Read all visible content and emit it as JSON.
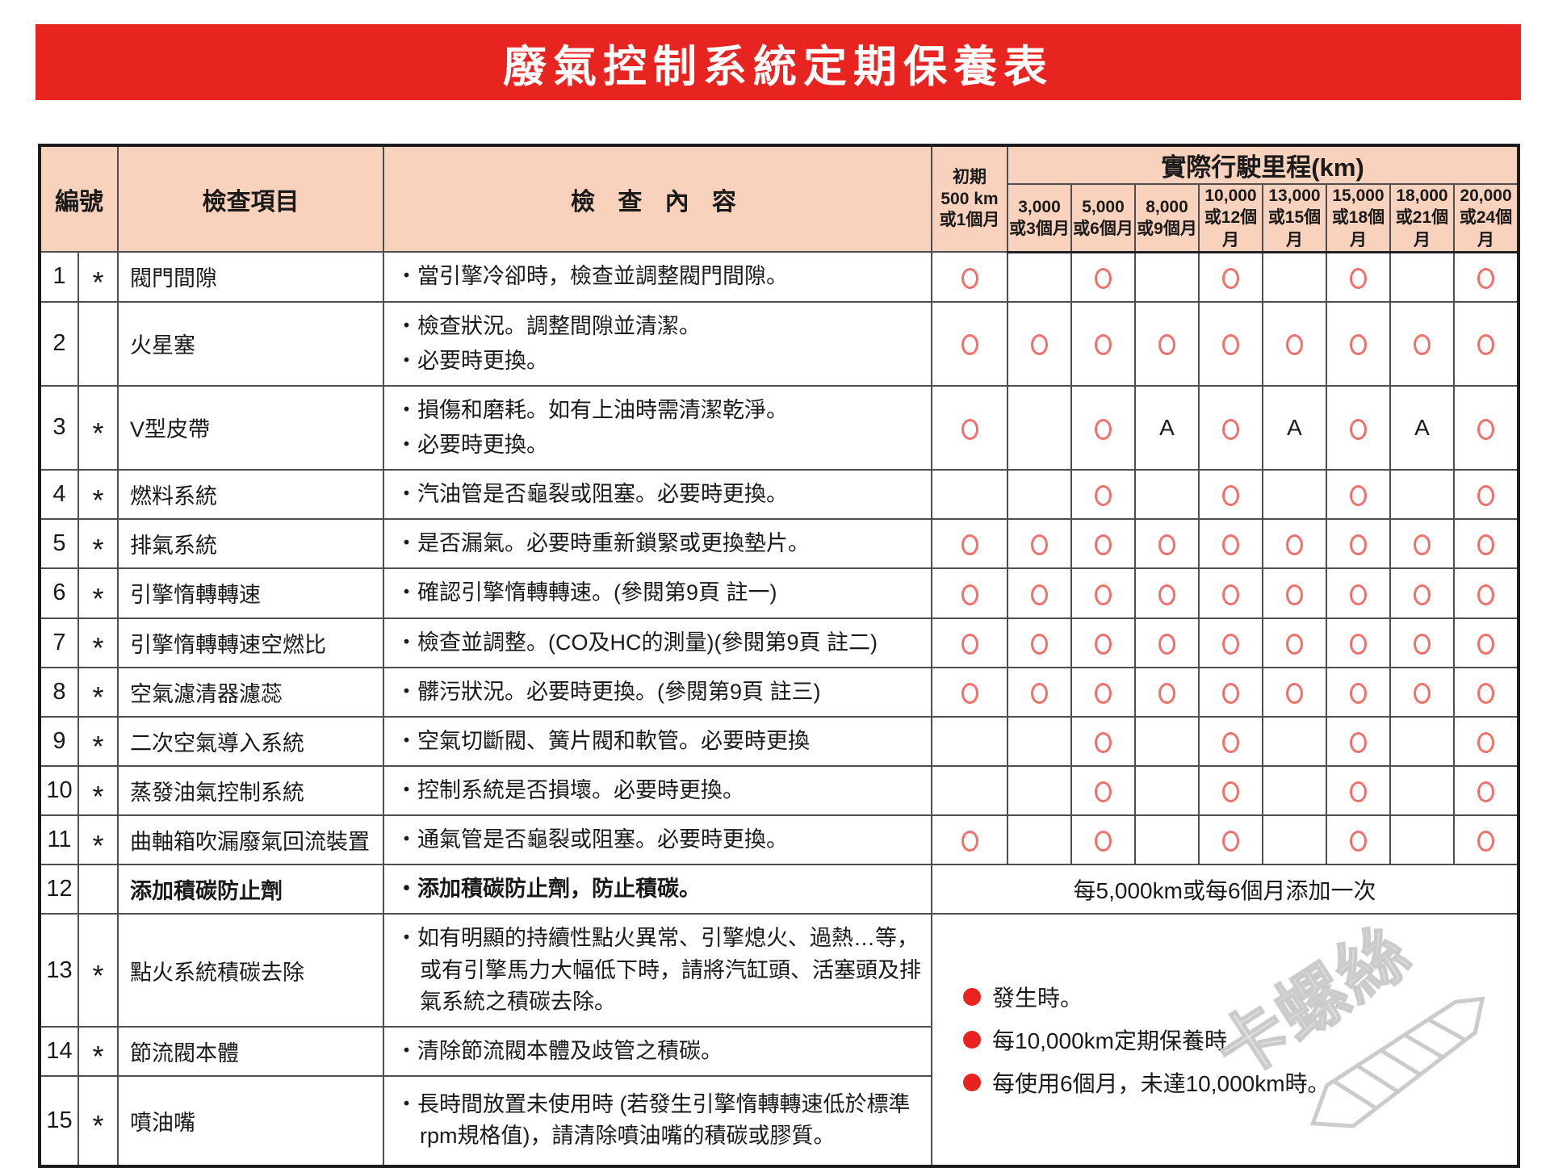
{
  "title": "廢氣控制系統定期保養表",
  "colors": {
    "banner_red": "#e82420",
    "header_bg": "#f9d2bd",
    "circle_red": "#f0706a",
    "bullet_red": "#e8231f",
    "grid_gray": "#4e4e4e",
    "watermark_gray": "#c9c9c9"
  },
  "symbols": {
    "star": "*",
    "circle": "○"
  },
  "header": {
    "no": "編號",
    "item": "檢查項目",
    "content": "檢 查 內 容",
    "initial": "初期\n500 km\n或1個月",
    "mileage_title": "實際行駛里程(km)",
    "mileage_cols": [
      "3,000\n或3個月",
      "5,000\n或6個月",
      "8,000\n或9個月",
      "10,000\n或12個月",
      "13,000\n或15個月",
      "15,000\n或18個月",
      "18,000\n或21個月",
      "20,000\n或24個月"
    ]
  },
  "rows": [
    {
      "no": "1",
      "star": true,
      "item": "閥門間隙",
      "content": [
        "・當引擎冷卻時，檢查並調整閥門間隙。"
      ],
      "marks": [
        "O",
        "",
        "O",
        "",
        "O",
        "",
        "O",
        "",
        "O"
      ]
    },
    {
      "no": "2",
      "star": false,
      "item": "火星塞",
      "content": [
        "・檢查狀況。調整間隙並清潔。",
        "・必要時更換。"
      ],
      "marks": [
        "O",
        "O",
        "O",
        "O",
        "O",
        "O",
        "O",
        "O",
        "O"
      ]
    },
    {
      "no": "3",
      "star": true,
      "item": "V型皮帶",
      "content": [
        "・損傷和磨耗。如有上油時需清潔乾淨。",
        "・必要時更換。"
      ],
      "marks": [
        "O",
        "",
        "O",
        "A",
        "O",
        "A",
        "O",
        "A",
        "O"
      ]
    },
    {
      "no": "4",
      "star": true,
      "item": "燃料系統",
      "content": [
        "・汽油管是否龜裂或阻塞。必要時更換。"
      ],
      "marks": [
        "",
        "",
        "O",
        "",
        "O",
        "",
        "O",
        "",
        "O"
      ]
    },
    {
      "no": "5",
      "star": true,
      "item": "排氣系統",
      "content": [
        "・是否漏氣。必要時重新鎖緊或更換墊片。"
      ],
      "marks": [
        "O",
        "O",
        "O",
        "O",
        "O",
        "O",
        "O",
        "O",
        "O"
      ]
    },
    {
      "no": "6",
      "star": true,
      "item": "引擎惰轉轉速",
      "content": [
        "・確認引擎惰轉轉速。(參閱第9頁 註一)"
      ],
      "marks": [
        "O",
        "O",
        "O",
        "O",
        "O",
        "O",
        "O",
        "O",
        "O"
      ]
    },
    {
      "no": "7",
      "star": true,
      "item": "引擎惰轉轉速空燃比",
      "content": [
        "・檢查並調整。(CO及HC的測量)(參閱第9頁 註二)"
      ],
      "marks": [
        "O",
        "O",
        "O",
        "O",
        "O",
        "O",
        "O",
        "O",
        "O"
      ]
    },
    {
      "no": "8",
      "star": true,
      "item": "空氣濾清器濾蕊",
      "content": [
        "・髒污狀況。必要時更換。(參閱第9頁 註三)"
      ],
      "marks": [
        "O",
        "O",
        "O",
        "O",
        "O",
        "O",
        "O",
        "O",
        "O"
      ]
    },
    {
      "no": "9",
      "star": true,
      "item": "二次空氣導入系統",
      "content": [
        "・空氣切斷閥、簧片閥和軟管。必要時更換"
      ],
      "marks": [
        "",
        "",
        "O",
        "",
        "O",
        "",
        "O",
        "",
        "O"
      ]
    },
    {
      "no": "10",
      "star": true,
      "item": "蒸發油氣控制系統",
      "content": [
        "・控制系統是否損壞。必要時更換。"
      ],
      "marks": [
        "",
        "",
        "O",
        "",
        "O",
        "",
        "O",
        "",
        "O"
      ]
    },
    {
      "no": "11",
      "star": true,
      "item": "曲軸箱吹漏廢氣回流裝置",
      "content": [
        "・通氣管是否龜裂或阻塞。必要時更換。"
      ],
      "marks": [
        "O",
        "",
        "O",
        "",
        "O",
        "",
        "O",
        "",
        "O"
      ]
    },
    {
      "no": "12",
      "star": false,
      "bold": true,
      "item": "添加積碳防止劑",
      "content": [
        "・添加積碳防止劑，防止積碳。"
      ],
      "note": true
    },
    {
      "no": "13",
      "star": true,
      "item": "點火系統積碳去除",
      "content": [
        "・如有明顯的持續性點火異常、引擎熄火、過熱…等，或有引擎馬力大幅低下時，請將汽缸頭、活塞頭及排氣系統之積碳去除。"
      ],
      "legend": true
    },
    {
      "no": "14",
      "star": true,
      "item": "節流閥本體",
      "content": [
        "・清除節流閥本體及歧管之積碳。"
      ]
    },
    {
      "no": "15",
      "star": true,
      "item": "噴油嘴",
      "content": [
        "・長時間放置未使用時 (若發生引擎惰轉轉速低於標準rpm規格值)，請清除噴油嘴的積碳或膠質。"
      ]
    }
  ],
  "row12_note": "每5,000km或每6個月添加一次",
  "legend": [
    "發生時。",
    "每10,000km定期保養時。",
    "每使用6個月，未達10,000km時。"
  ],
  "watermark_text": "卡螺絲"
}
